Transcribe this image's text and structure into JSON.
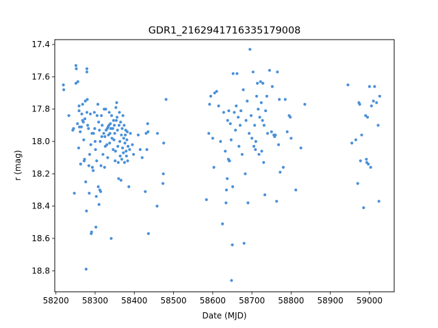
{
  "chart_data": {
    "type": "scatter",
    "title": "GDR1_2162941716335179008",
    "xlabel": "Date (MJD)",
    "ylabel": "r (mag)",
    "xlim": [
      58197,
      59063
    ],
    "ylim": [
      18.93,
      17.37
    ],
    "y_inverted": true,
    "xticks": [
      58200,
      58300,
      58400,
      58500,
      58600,
      58700,
      58800,
      58900,
      59000
    ],
    "yticks": [
      17.4,
      17.6,
      17.8,
      18.0,
      18.2,
      18.4,
      18.6,
      18.8
    ],
    "ytick_labels": [
      "17.4",
      "17.6",
      "17.8",
      "18.0",
      "18.2",
      "18.4",
      "18.6",
      "18.8"
    ],
    "marker_color": "#4a90d9",
    "series": [
      {
        "points": [
          [
            58219,
            17.65
          ],
          [
            58220,
            17.68
          ],
          [
            58233,
            17.84
          ],
          [
            58243,
            17.93
          ],
          [
            58245,
            17.92
          ],
          [
            58247,
            18.32
          ],
          [
            58251,
            17.53
          ],
          [
            58252,
            17.55
          ],
          [
            58251,
            17.64
          ],
          [
            58256,
            17.63
          ],
          [
            58255,
            17.89
          ],
          [
            58258,
            18.04
          ],
          [
            58259,
            17.78
          ],
          [
            58259,
            17.81
          ],
          [
            58260,
            17.91
          ],
          [
            58262,
            17.94
          ],
          [
            58263,
            18.14
          ],
          [
            58265,
            17.91
          ],
          [
            58266,
            17.83
          ],
          [
            58268,
            17.77
          ],
          [
            58268,
            17.87
          ],
          [
            58270,
            17.88
          ],
          [
            58271,
            17.99
          ],
          [
            58272,
            18.12
          ],
          [
            58273,
            18.11
          ],
          [
            58274,
            17.86
          ],
          [
            58275,
            17.75
          ],
          [
            58276,
            18.25
          ],
          [
            58277,
            18.79
          ],
          [
            58278,
            18.43
          ],
          [
            58279,
            17.55
          ],
          [
            58279,
            17.57
          ],
          [
            58279,
            17.82
          ],
          [
            58280,
            17.74
          ],
          [
            58281,
            17.9
          ],
          [
            58283,
            17.92
          ],
          [
            58284,
            18.15
          ],
          [
            58285,
            18.32
          ],
          [
            58286,
            18.08
          ],
          [
            58288,
            17.83
          ],
          [
            58289,
            18.02
          ],
          [
            58290,
            18.57
          ],
          [
            58291,
            18.56
          ],
          [
            58292,
            17.95
          ],
          [
            58293,
            18.16
          ],
          [
            58295,
            18.18
          ],
          [
            58296,
            17.95
          ],
          [
            58298,
            17.82
          ],
          [
            58299,
            17.92
          ],
          [
            58300,
            18.0
          ],
          [
            58301,
            18.05
          ],
          [
            58302,
            18.53
          ],
          [
            58303,
            18.34
          ],
          [
            58304,
            18.12
          ],
          [
            58305,
            17.84
          ],
          [
            58307,
            17.77
          ],
          [
            58308,
            18.28
          ],
          [
            58309,
            17.88
          ],
          [
            58310,
            18.39
          ],
          [
            58311,
            17.93
          ],
          [
            58312,
            18.3
          ],
          [
            58313,
            18.0
          ],
          [
            58314,
            18.31
          ],
          [
            58315,
            18.15
          ],
          [
            58316,
            17.84
          ],
          [
            58317,
            17.97
          ],
          [
            58318,
            17.9
          ],
          [
            58320,
            18.08
          ],
          [
            58322,
            17.95
          ],
          [
            58323,
            17.8
          ],
          [
            58324,
            18.16
          ],
          [
            58325,
            17.97
          ],
          [
            58326,
            18.03
          ],
          [
            58327,
            17.8
          ],
          [
            58328,
            17.93
          ],
          [
            58330,
            18.02
          ],
          [
            58331,
            17.92
          ],
          [
            58332,
            18.1
          ],
          [
            58333,
            17.91
          ],
          [
            58334,
            17.96
          ],
          [
            58335,
            17.9
          ],
          [
            58336,
            17.82
          ],
          [
            58337,
            18.01
          ],
          [
            58338,
            17.95
          ],
          [
            58339,
            17.89
          ],
          [
            58340,
            17.92
          ],
          [
            58341,
            18.6
          ],
          [
            58342,
            17.84
          ],
          [
            58343,
            17.98
          ],
          [
            58345,
            17.92
          ],
          [
            58346,
            18.05
          ],
          [
            58347,
            17.87
          ],
          [
            58348,
            17.99
          ],
          [
            58349,
            17.9
          ],
          [
            58350,
            17.95
          ],
          [
            58351,
            18.12
          ],
          [
            58352,
            18.06
          ],
          [
            58353,
            17.79
          ],
          [
            58354,
            17.87
          ],
          [
            58355,
            17.76
          ],
          [
            58356,
            17.85
          ],
          [
            58357,
            17.93
          ],
          [
            58358,
            18.03
          ],
          [
            58359,
            18.13
          ],
          [
            58360,
            18.23
          ],
          [
            58361,
            17.9
          ],
          [
            58362,
            17.82
          ],
          [
            58363,
            18.0
          ],
          [
            58364,
            18.09
          ],
          [
            58365,
            17.88
          ],
          [
            58366,
            18.24
          ],
          [
            58367,
            17.96
          ],
          [
            58368,
            18.11
          ],
          [
            58369,
            17.92
          ],
          [
            58370,
            18.04
          ],
          [
            58371,
            17.84
          ],
          [
            58372,
            18.07
          ],
          [
            58373,
            17.98
          ],
          [
            58374,
            17.9
          ],
          [
            58375,
            18.13
          ],
          [
            58376,
            18.01
          ],
          [
            58377,
            17.96
          ],
          [
            58378,
            17.93
          ],
          [
            58379,
            18.06
          ],
          [
            58380,
            18.09
          ],
          [
            58381,
            17.99
          ],
          [
            58382,
            17.94
          ],
          [
            58383,
            18.12
          ],
          [
            58384,
            18.03
          ],
          [
            58386,
            18.28
          ],
          [
            58388,
            18.05
          ],
          [
            58390,
            17.95
          ],
          [
            58395,
            18.02
          ],
          [
            58398,
            18.08
          ],
          [
            58410,
            17.96
          ],
          [
            58415,
            18.05
          ],
          [
            58420,
            18.1
          ],
          [
            58428,
            18.31
          ],
          [
            58430,
            17.95
          ],
          [
            58432,
            18.05
          ],
          [
            58434,
            17.89
          ],
          [
            58435,
            17.94
          ],
          [
            58436,
            18.57
          ],
          [
            58458,
            18.4
          ],
          [
            58459,
            17.95
          ],
          [
            58473,
            18.26
          ],
          [
            58474,
            18.2
          ],
          [
            58475,
            18.01
          ],
          [
            58481,
            17.74
          ],
          [
            58584,
            18.36
          ],
          [
            58590,
            17.95
          ],
          [
            58592,
            17.77
          ],
          [
            58595,
            17.72
          ],
          [
            58600,
            17.98
          ],
          [
            58603,
            18.16
          ],
          [
            58605,
            17.7
          ],
          [
            58610,
            17.69
          ],
          [
            58615,
            17.78
          ],
          [
            58620,
            18.0
          ],
          [
            58625,
            18.51
          ],
          [
            58628,
            17.82
          ],
          [
            58632,
            18.06
          ],
          [
            58634,
            18.38
          ],
          [
            58635,
            18.3
          ],
          [
            58637,
            18.23
          ],
          [
            58638,
            17.87
          ],
          [
            58640,
            18.11
          ],
          [
            58641,
            17.81
          ],
          [
            58642,
            18.12
          ],
          [
            58643,
            18.12
          ],
          [
            58645,
            17.89
          ],
          [
            58647,
            17.99
          ],
          [
            58648,
            18.86
          ],
          [
            58650,
            18.64
          ],
          [
            58651,
            18.28
          ],
          [
            58652,
            17.58
          ],
          [
            58655,
            17.82
          ],
          [
            58658,
            17.93
          ],
          [
            58660,
            17.78
          ],
          [
            58662,
            17.58
          ],
          [
            58665,
            17.85
          ],
          [
            58667,
            18.03
          ],
          [
            58670,
            17.9
          ],
          [
            58672,
            17.81
          ],
          [
            58675,
            18.08
          ],
          [
            58678,
            17.68
          ],
          [
            58680,
            18.63
          ],
          [
            58683,
            18.2
          ],
          [
            58685,
            17.87
          ],
          [
            58688,
            17.75
          ],
          [
            58690,
            18.38
          ],
          [
            58693,
            17.95
          ],
          [
            58695,
            17.43
          ],
          [
            58698,
            17.84
          ],
          [
            58700,
            17.98
          ],
          [
            58703,
            17.57
          ],
          [
            58705,
            18.03
          ],
          [
            58707,
            17.9
          ],
          [
            58709,
            18.05
          ],
          [
            58710,
            18.0
          ],
          [
            58712,
            17.72
          ],
          [
            58714,
            17.64
          ],
          [
            58716,
            17.8
          ],
          [
            58718,
            18.08
          ],
          [
            58720,
            17.85
          ],
          [
            58722,
            17.63
          ],
          [
            58724,
            17.76
          ],
          [
            58725,
            18.06
          ],
          [
            58727,
            17.87
          ],
          [
            58728,
            17.64
          ],
          [
            58730,
            18.13
          ],
          [
            58731,
            17.9
          ],
          [
            58733,
            18.33
          ],
          [
            58735,
            17.81
          ],
          [
            58738,
            17.72
          ],
          [
            58740,
            17.95
          ],
          [
            58745,
            17.56
          ],
          [
            58750,
            17.94
          ],
          [
            58752,
            17.66
          ],
          [
            58756,
            17.96
          ],
          [
            58758,
            17.97
          ],
          [
            58760,
            17.96
          ],
          [
            58763,
            18.37
          ],
          [
            58765,
            17.57
          ],
          [
            58768,
            18.02
          ],
          [
            58770,
            17.74
          ],
          [
            58772,
            18.19
          ],
          [
            58780,
            18.16
          ],
          [
            58785,
            17.74
          ],
          [
            58790,
            17.94
          ],
          [
            58795,
            17.84
          ],
          [
            58798,
            17.85
          ],
          [
            58800,
            17.98
          ],
          [
            58812,
            18.3
          ],
          [
            58825,
            18.04
          ],
          [
            58835,
            17.77
          ],
          [
            58945,
            17.65
          ],
          [
            58955,
            18.01
          ],
          [
            58965,
            17.99
          ],
          [
            58970,
            18.26
          ],
          [
            58973,
            17.76
          ],
          [
            58975,
            17.77
          ],
          [
            58977,
            18.12
          ],
          [
            58980,
            17.96
          ],
          [
            58985,
            18.41
          ],
          [
            58990,
            17.84
          ],
          [
            58992,
            18.11
          ],
          [
            58993,
            18.13
          ],
          [
            58995,
            17.85
          ],
          [
            58997,
            18.14
          ],
          [
            59000,
            17.66
          ],
          [
            59003,
            18.16
          ],
          [
            59005,
            17.78
          ],
          [
            59010,
            17.75
          ],
          [
            59013,
            17.66
          ],
          [
            59018,
            17.76
          ],
          [
            59022,
            17.9
          ],
          [
            59024,
            18.37
          ],
          [
            59026,
            17.72
          ]
        ]
      }
    ]
  }
}
